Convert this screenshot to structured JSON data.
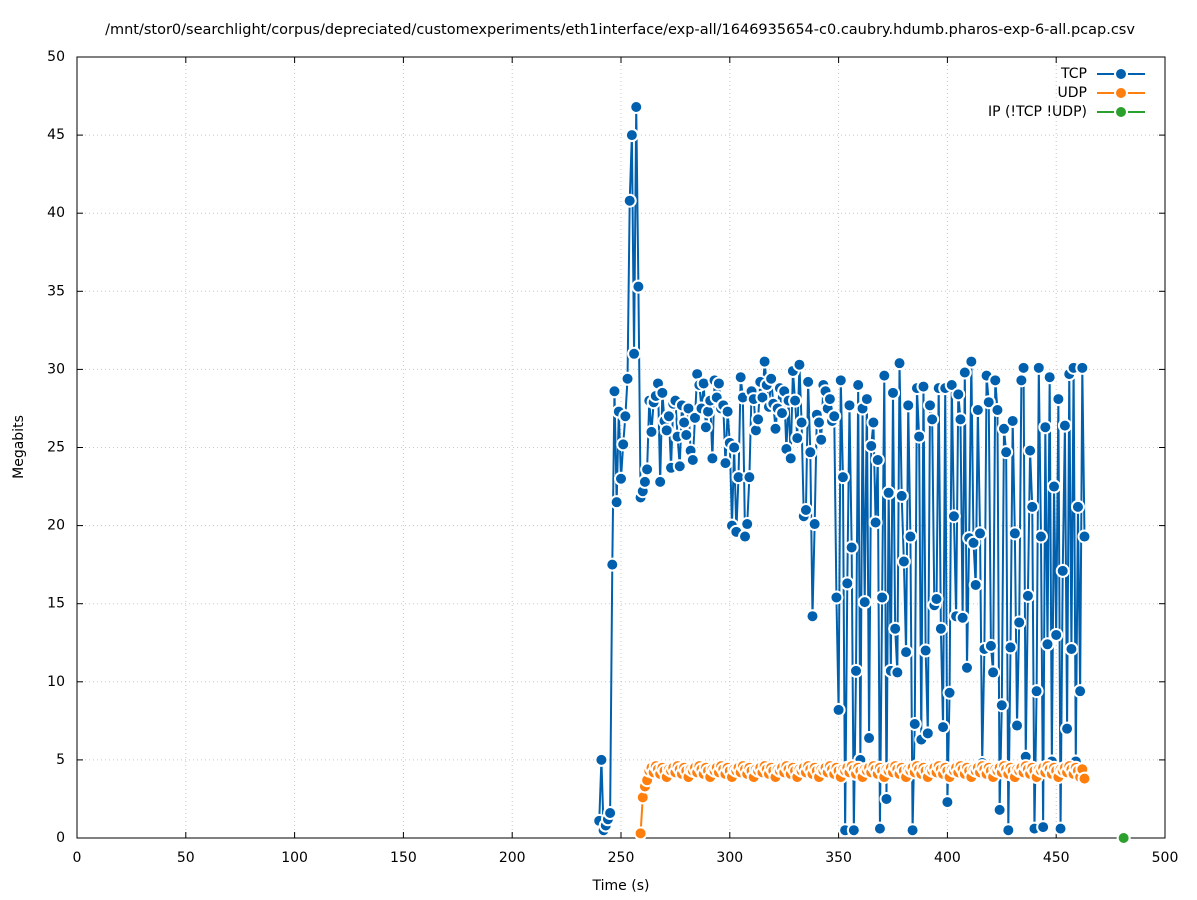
{
  "chart_data": {
    "type": "line",
    "title": "/mnt/stor0/searchlight/corpus/depreciated/customexperiments/eth1interface/exp-all/1646935654-c0.caubry.hdumb.pharos-exp-6-all.pcap.csv",
    "xlabel": "Time (s)",
    "ylabel": "Megabits",
    "xlim": [
      0,
      500
    ],
    "xticks": [
      0,
      50,
      100,
      150,
      200,
      250,
      300,
      350,
      400,
      450,
      500
    ],
    "ylim": [
      0,
      50
    ],
    "yticks": [
      0,
      5,
      10,
      15,
      20,
      25,
      30,
      35,
      40,
      45,
      50
    ],
    "grid": true,
    "legend": "top-right",
    "series": [
      {
        "name": "TCP",
        "color": "#0060ad",
        "x": [
          240,
          241,
          242,
          243,
          244,
          245,
          246,
          247,
          248,
          249,
          250,
          251,
          252,
          253,
          254,
          255,
          256,
          257,
          258,
          259,
          260,
          261,
          262,
          263,
          264,
          265,
          266,
          267,
          268,
          269,
          270,
          271,
          272,
          273,
          274,
          275,
          276,
          277,
          278,
          279,
          280,
          281,
          282,
          283,
          284,
          285,
          286,
          287,
          288,
          289,
          290,
          291,
          292,
          293,
          294,
          295,
          296,
          297,
          298,
          299,
          300,
          301,
          302,
          303,
          304,
          305,
          306,
          307,
          308,
          309,
          310,
          311,
          312,
          313,
          314,
          315,
          316,
          317,
          318,
          319,
          320,
          321,
          322,
          323,
          324,
          325,
          326,
          327,
          328,
          329,
          330,
          331,
          332,
          333,
          334,
          335,
          336,
          337,
          338,
          339,
          340,
          341,
          342,
          343,
          344,
          345,
          346,
          347,
          348,
          349,
          350,
          351,
          352,
          353,
          354,
          355,
          356,
          357,
          358,
          359,
          360,
          361,
          362,
          363,
          364,
          365,
          366,
          367,
          368,
          369,
          370,
          371,
          372,
          373,
          374,
          375,
          376,
          377,
          378,
          379,
          380,
          381,
          382,
          383,
          384,
          385,
          386,
          387,
          388,
          389,
          390,
          391,
          392,
          393,
          394,
          395,
          396,
          397,
          398,
          399,
          400,
          401,
          402,
          403,
          404,
          405,
          406,
          407,
          408,
          409,
          410,
          411,
          412,
          413,
          414,
          415,
          416,
          417,
          418,
          419,
          420,
          421,
          422,
          423,
          424,
          425,
          426,
          427,
          428,
          429,
          430,
          431,
          432,
          433,
          434,
          435,
          436,
          437,
          438,
          439,
          440,
          441,
          442,
          443,
          444,
          445,
          446,
          447,
          448,
          449,
          450,
          451,
          452,
          453,
          454,
          455,
          456,
          457,
          458,
          459,
          460,
          461,
          462,
          463
        ],
        "values": [
          1.1,
          5.0,
          0.5,
          0.8,
          1.2,
          1.6,
          17.5,
          28.6,
          21.5,
          27.3,
          23.0,
          25.2,
          27.0,
          29.4,
          40.8,
          45.0,
          31.0,
          46.8,
          35.3,
          21.8,
          22.2,
          22.8,
          23.6,
          28.0,
          26.0,
          27.9,
          28.3,
          29.1,
          22.8,
          28.5,
          26.7,
          26.1,
          27.0,
          23.7,
          27.8,
          28.0,
          25.7,
          23.8,
          27.7,
          26.6,
          25.8,
          27.5,
          24.8,
          24.2,
          26.9,
          29.7,
          29.0,
          27.5,
          29.1,
          26.3,
          27.3,
          28.0,
          24.3,
          29.3,
          28.2,
          29.1,
          27.5,
          27.7,
          24.0,
          27.3,
          25.3,
          20.0,
          25.0,
          19.6,
          23.1,
          29.5,
          28.2,
          19.3,
          20.1,
          23.1,
          28.6,
          28.1,
          26.1,
          26.8,
          29.2,
          28.2,
          30.5,
          29.0,
          27.6,
          29.4,
          27.8,
          26.2,
          27.5,
          28.8,
          27.2,
          28.6,
          24.9,
          28.0,
          24.3,
          29.9,
          28.0,
          25.6,
          30.3,
          26.6,
          20.6,
          21.0,
          29.2,
          24.7,
          14.2,
          20.1,
          27.1,
          26.6,
          25.5,
          29.0,
          28.6,
          27.5,
          28.1,
          26.7,
          27.0,
          15.4,
          8.2,
          29.3,
          23.1,
          0.5,
          16.3,
          27.7,
          18.6,
          0.5,
          10.7,
          29.0,
          5.0,
          27.5,
          15.1,
          28.1,
          6.4,
          25.1,
          26.6,
          20.2,
          24.2,
          0.6,
          15.4,
          29.6,
          2.5,
          22.1,
          10.7,
          28.5,
          13.4,
          10.6,
          30.4,
          21.9,
          17.7,
          11.9,
          27.7,
          19.3,
          0.5,
          7.3,
          28.8,
          25.7,
          6.3,
          28.9,
          12.0,
          6.7,
          27.7,
          26.8,
          14.9,
          15.3,
          28.8,
          13.4,
          7.1,
          28.8,
          2.3,
          9.3,
          29.0,
          20.6,
          14.2,
          28.4,
          26.8,
          14.1,
          29.8,
          10.9,
          19.2,
          30.5,
          18.9,
          16.2,
          27.4,
          19.5,
          4.8,
          12.1,
          29.6,
          27.9,
          12.3,
          10.6,
          29.3,
          27.4,
          1.8,
          8.5,
          26.2,
          24.7,
          0.5,
          12.2,
          26.7,
          19.5,
          7.2,
          13.8,
          29.3,
          30.1,
          5.2,
          15.5,
          24.8,
          21.2,
          0.6,
          9.4,
          30.1,
          19.3,
          0.7,
          26.3,
          12.4,
          29.5,
          4.9,
          22.5,
          13.0,
          28.1,
          0.6,
          17.1,
          26.4,
          7.0,
          29.7,
          12.1,
          30.1,
          4.9,
          21.2,
          9.4,
          30.1,
          19.3
        ]
      },
      {
        "name": "UDP",
        "color": "#ff7f0e",
        "x": [
          259,
          260,
          261,
          262,
          263,
          264,
          265,
          266,
          267,
          268,
          269,
          270,
          271,
          272,
          273,
          274,
          275,
          276,
          277,
          278,
          279,
          280,
          281,
          282,
          283,
          284,
          285,
          286,
          287,
          288,
          289,
          290,
          291,
          292,
          293,
          294,
          295,
          296,
          297,
          298,
          299,
          300,
          301,
          302,
          303,
          304,
          305,
          306,
          307,
          308,
          309,
          310,
          311,
          312,
          313,
          314,
          315,
          316,
          317,
          318,
          319,
          320,
          321,
          322,
          323,
          324,
          325,
          326,
          327,
          328,
          329,
          330,
          331,
          332,
          333,
          334,
          335,
          336,
          337,
          338,
          339,
          340,
          341,
          342,
          343,
          344,
          345,
          346,
          347,
          348,
          349,
          350,
          351,
          352,
          353,
          354,
          355,
          356,
          357,
          358,
          359,
          360,
          361,
          362,
          363,
          364,
          365,
          366,
          367,
          368,
          369,
          370,
          371,
          372,
          373,
          374,
          375,
          376,
          377,
          378,
          379,
          380,
          381,
          382,
          383,
          384,
          385,
          386,
          387,
          388,
          389,
          390,
          391,
          392,
          393,
          394,
          395,
          396,
          397,
          398,
          399,
          400,
          401,
          402,
          403,
          404,
          405,
          406,
          407,
          408,
          409,
          410,
          411,
          412,
          413,
          414,
          415,
          416,
          417,
          418,
          419,
          420,
          421,
          422,
          423,
          424,
          425,
          426,
          427,
          428,
          429,
          430,
          431,
          432,
          433,
          434,
          435,
          436,
          437,
          438,
          439,
          440,
          441,
          442,
          443,
          444,
          445,
          446,
          447,
          448,
          449,
          450,
          451,
          452,
          453,
          454,
          455,
          456,
          457,
          458,
          459,
          460,
          461,
          462,
          463
        ],
        "values": [
          0.3,
          2.6,
          3.3,
          3.7,
          4.3,
          4.5,
          4.2,
          4.6,
          4.4,
          4.1,
          4.5,
          4.3,
          3.9,
          4.4,
          4.3,
          4.5,
          4.2,
          4.6,
          4.4,
          4.1,
          4.5,
          4.3,
          3.9,
          4.4,
          4.3,
          4.5,
          4.2,
          4.6,
          4.4,
          4.1,
          4.5,
          4.3,
          3.9,
          4.4,
          4.3,
          4.5,
          4.2,
          4.6,
          4.4,
          4.1,
          4.5,
          4.3,
          3.9,
          4.4,
          4.3,
          4.5,
          4.2,
          4.6,
          4.4,
          4.1,
          4.5,
          4.3,
          3.9,
          4.4,
          4.3,
          4.5,
          4.2,
          4.6,
          4.4,
          4.1,
          4.5,
          4.3,
          3.9,
          4.4,
          4.3,
          4.5,
          4.2,
          4.6,
          4.4,
          4.1,
          4.5,
          4.3,
          3.9,
          4.4,
          4.3,
          4.5,
          4.2,
          4.6,
          4.4,
          4.1,
          4.5,
          4.3,
          3.9,
          4.4,
          4.3,
          4.5,
          4.2,
          4.6,
          4.4,
          4.1,
          4.5,
          4.3,
          3.9,
          4.4,
          4.3,
          4.5,
          4.2,
          4.6,
          4.4,
          4.1,
          4.5,
          4.3,
          3.9,
          4.4,
          4.3,
          4.5,
          4.2,
          4.6,
          4.4,
          4.1,
          4.5,
          4.3,
          3.9,
          4.4,
          4.3,
          4.5,
          4.2,
          4.6,
          4.4,
          4.1,
          4.5,
          4.3,
          3.9,
          4.4,
          4.3,
          4.5,
          4.2,
          4.6,
          4.4,
          4.1,
          4.5,
          4.3,
          3.9,
          4.4,
          4.3,
          4.5,
          4.2,
          4.6,
          4.4,
          4.1,
          4.5,
          4.3,
          3.9,
          4.4,
          4.3,
          4.5,
          4.2,
          4.6,
          4.4,
          4.1,
          4.5,
          4.3,
          3.9,
          4.4,
          4.3,
          4.5,
          4.2,
          4.6,
          4.4,
          4.1,
          4.5,
          4.3,
          3.9,
          4.4,
          4.3,
          4.5,
          4.2,
          4.6,
          4.4,
          4.1,
          4.5,
          4.3,
          3.9,
          4.4,
          4.3,
          4.5,
          4.2,
          4.6,
          4.4,
          4.1,
          4.5,
          4.3,
          3.9,
          4.4,
          4.3,
          4.5,
          4.2,
          4.6,
          4.4,
          4.1,
          4.5,
          4.3,
          3.9,
          4.4,
          4.3,
          4.5,
          4.2,
          4.6,
          4.4,
          4.1,
          4.5,
          4.3,
          3.9,
          4.4,
          3.8
        ]
      },
      {
        "name": "IP (!TCP  !UDP)",
        "color": "#2ca02c",
        "x": [
          481
        ],
        "values": [
          0
        ]
      }
    ]
  }
}
